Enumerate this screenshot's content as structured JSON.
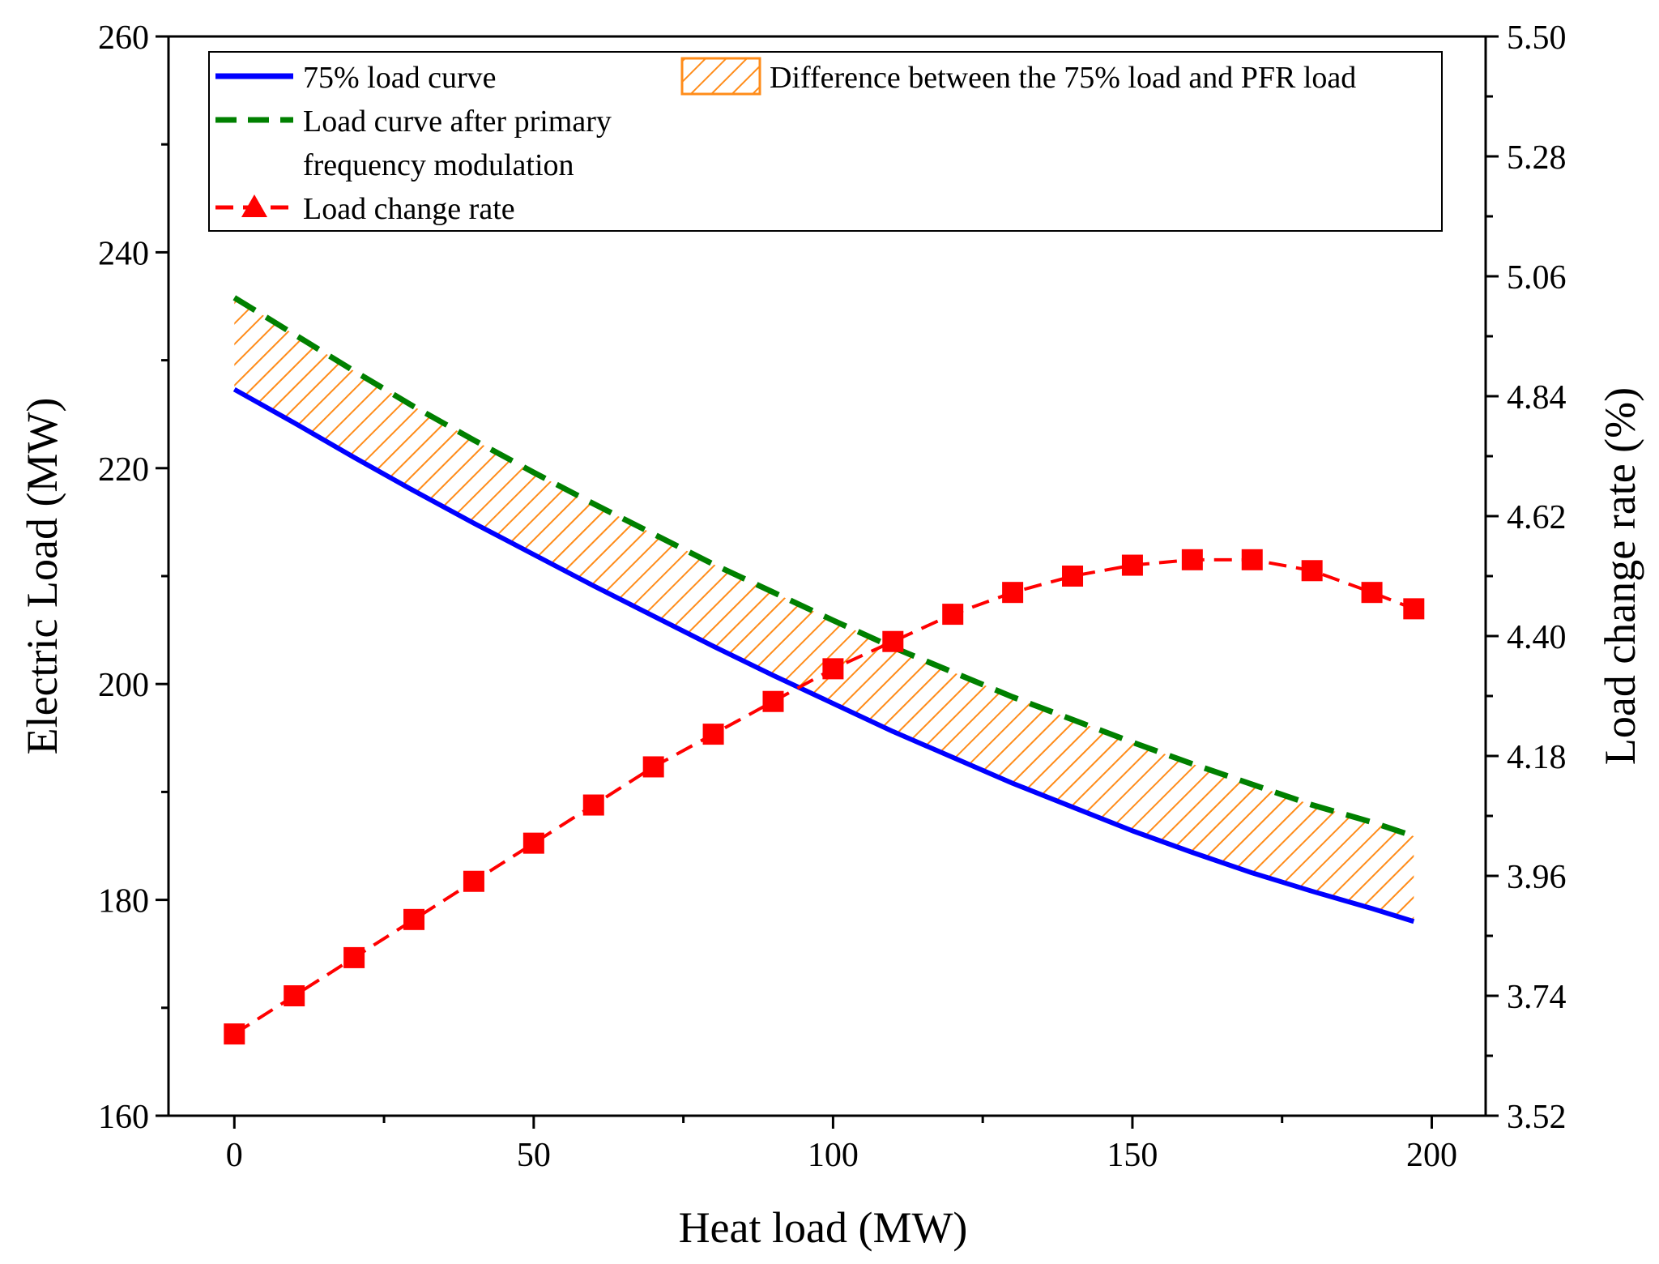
{
  "chart_data": {
    "type": "line",
    "xlabel": "Heat load (MW)",
    "ylabel": "Electric Load (MW)",
    "y2label": "Load change rate (%)",
    "xlim": [
      -11,
      209
    ],
    "ylim": [
      160,
      260
    ],
    "y2lim": [
      3.52,
      5.5
    ],
    "xticks": [
      0,
      50,
      100,
      150,
      200
    ],
    "yticks": [
      160,
      180,
      200,
      220,
      240,
      260
    ],
    "y2ticks": [
      3.52,
      3.74,
      3.96,
      4.18,
      4.4,
      4.62,
      4.84,
      5.06,
      5.28,
      5.5
    ],
    "ytick_labels": [
      "160",
      "180",
      "200",
      "220",
      "240",
      "260"
    ],
    "y2tick_labels": [
      "3.52",
      "3.74",
      "3.96",
      "4.18",
      "4.40",
      "4.62",
      "4.84",
      "5.06",
      "5.28",
      "5.50"
    ],
    "x": [
      0,
      10,
      20,
      30,
      40,
      50,
      60,
      70,
      80,
      90,
      100,
      110,
      120,
      130,
      140,
      150,
      160,
      170,
      180,
      190,
      197
    ],
    "series": [
      {
        "name": "75% load curve",
        "axis": "left",
        "color": "#0000ff",
        "style": "solid",
        "values": [
          227.3,
          224.2,
          221.0,
          217.9,
          214.9,
          212.0,
          209.1,
          206.3,
          203.5,
          200.8,
          198.2,
          195.6,
          193.2,
          190.8,
          188.6,
          186.4,
          184.4,
          182.5,
          180.8,
          179.2,
          178.0
        ]
      },
      {
        "name": "Load curve after primary frequency modulation",
        "legend_lines": [
          "Load curve after primary",
          "frequency modulation"
        ],
        "axis": "left",
        "color": "#008000",
        "style": "dashed",
        "values": [
          235.8,
          232.4,
          229.0,
          225.7,
          222.6,
          219.6,
          216.7,
          213.9,
          211.1,
          208.5,
          205.9,
          203.4,
          201.1,
          198.8,
          196.7,
          194.6,
          192.6,
          190.7,
          188.8,
          187.2,
          185.9
        ]
      },
      {
        "name": "Load change rate",
        "axis": "right",
        "color": "#ff0000",
        "style": "dashed-markers",
        "marker": "square",
        "values": [
          3.67,
          3.74,
          3.81,
          3.88,
          3.95,
          4.02,
          4.09,
          4.16,
          4.22,
          4.28,
          4.34,
          4.39,
          4.44,
          4.48,
          4.51,
          4.53,
          4.54,
          4.54,
          4.52,
          4.48,
          4.45
        ]
      }
    ],
    "fill": {
      "name": "Difference between the 75% load and PFR load",
      "between": [
        "75% load curve",
        "Load curve after primary frequency modulation"
      ],
      "color": "#ff8c1a",
      "pattern": "hatch"
    },
    "legend": {
      "position": "top",
      "entries": [
        "75% load curve",
        "Load curve after primary",
        "frequency modulation",
        "Load change rate",
        "Difference between the 75% load and PFR load"
      ]
    },
    "grid": false
  }
}
